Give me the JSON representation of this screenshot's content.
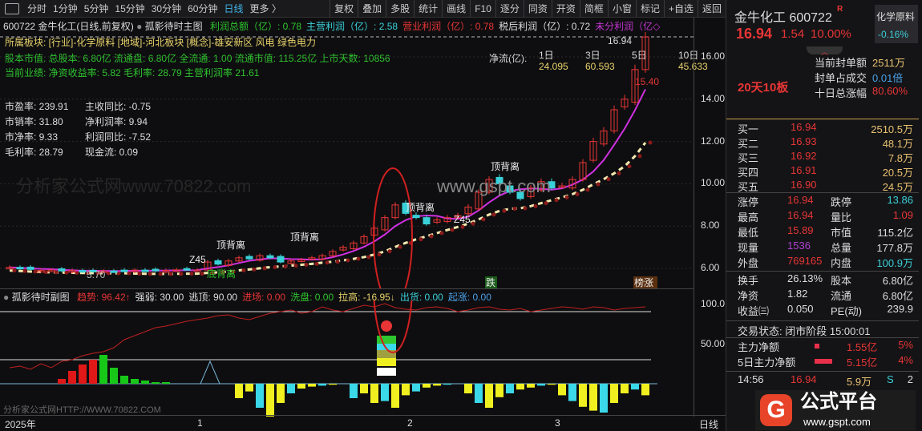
{
  "toolbar": {
    "periods": [
      "分时",
      "1分钟",
      "5分钟",
      "15分钟",
      "30分钟",
      "60分钟",
      "日线",
      "更多 〉"
    ],
    "selected": "日线",
    "buttons": [
      "复权",
      "叠加",
      "多股",
      "统计",
      "画线",
      "F10",
      "逐分",
      "同资",
      "开资",
      "简框",
      "小窗",
      "标记",
      "+自选",
      "返回"
    ]
  },
  "header": {
    "title": "600722 金牛化工(日线,前复权)",
    "indicator": "孤影待时主图",
    "items": [
      {
        "t": "利润总额（亿）: 0.78",
        "c": "#2ec52e"
      },
      {
        "t": "主营利润（亿）: 2.58",
        "c": "#3ad0d8"
      },
      {
        "t": "营业利润（亿）: 0.78",
        "c": "#e83535"
      },
      {
        "t": "税后利润（亿）: 0.72",
        "c": "#dddddd"
      },
      {
        "t": "未分利润（亿◇",
        "c": "#c236d0"
      }
    ]
  },
  "info": {
    "sector": "所属板块: [行业]-化学原料 [地域]-河北板块 [概念]-雄安新区 风电 绿色电力",
    "cap": "股本市值: 总股本: 6.80亿 流通盘: 6.80亿 全流通: 1.00 流通市值: 115.25亿 上市天数: 10856",
    "perf": "当前业绩:  净资收益率: 5.82 毛利率: 28.79 主营利润率 21.61",
    "ratios": [
      "市盈率: 239.91",
      "主收同比: -0.75",
      "市销率: 31.80",
      "净利润率: 9.94",
      "市净率: 9.33",
      "利润同比: -7.52",
      "毛利率: 28.79",
      "现金流: 0.09"
    ]
  },
  "netflow": {
    "label": "净流(亿):",
    "periods": [
      "1日",
      "3日",
      "5日",
      "10日"
    ],
    "values": [
      "24.095",
      "60.593",
      "",
      "45.633"
    ]
  },
  "annotations": {
    "top_div": "顶背离",
    "bottom_div": "底背离",
    "z45": "Z45",
    "low": "5.70",
    "high": "16.94",
    "high2": "15.40",
    "die": "跌",
    "bang": "榜涨",
    "watermark": "分析家公式网www.70822.com",
    "gspt": "www.gspt.com"
  },
  "price_axis": [
    "16.00",
    "14.00",
    "12.00",
    "10.00",
    "8.00",
    "6.00"
  ],
  "sub_axis": [
    "100.0",
    "50.00"
  ],
  "sub": {
    "title": "孤影待时副图",
    "items": [
      {
        "t": "趋势: 96.42↑",
        "c": "#e83535"
      },
      {
        "t": "强弱: 30.00",
        "c": "#dddddd"
      },
      {
        "t": "逃顶: 90.00",
        "c": "#dddddd"
      },
      {
        "t": "进场: 0.00",
        "c": "#e83535"
      },
      {
        "t": "洗盘: 0.00",
        "c": "#2ec52e"
      },
      {
        "t": "拉高: -16.95↓",
        "c": "#e8d36b"
      },
      {
        "t": "出货: 0.00",
        "c": "#3ad0d8"
      },
      {
        "t": "起涨: 0.00",
        "c": "#4aa0e8"
      }
    ],
    "watermark": "分析家公式网HTTP://WWW.70822.COM"
  },
  "date_axis": {
    "year": "2025年",
    "months": [
      "1",
      "2",
      "3"
    ],
    "period": "日线"
  },
  "chart_data": {
    "type": "candlestick",
    "closes": [
      6.05,
      6.0,
      5.95,
      5.9,
      5.92,
      5.88,
      5.9,
      5.85,
      5.9,
      5.88,
      5.86,
      5.9,
      5.92,
      5.9,
      5.88,
      5.9,
      5.93,
      5.95,
      5.92,
      6.3,
      6.2,
      6.35,
      6.5,
      6.45,
      6.6,
      6.5,
      6.3,
      6.35,
      6.4,
      6.5,
      6.6,
      6.8,
      7.0,
      7.2,
      7.5,
      7.9,
      8.4,
      9.0,
      8.6,
      8.4,
      8.1,
      8.3,
      8.4,
      8.5,
      8.9,
      9.6,
      10.2,
      10.0,
      9.6,
      9.3,
      9.8,
      10.1,
      9.8,
      9.9,
      10.2,
      11.0,
      12.0,
      12.5,
      13.5,
      14.0,
      15.4,
      16.94
    ],
    "ylim": [
      5.5,
      17
    ],
    "sub_hist": [
      0,
      0,
      0,
      0,
      0,
      3,
      8,
      12,
      15,
      18,
      10,
      5,
      3,
      2,
      1,
      1,
      0,
      0,
      0,
      0,
      0,
      0,
      -15,
      -8,
      -25,
      -35,
      -20,
      -10,
      -5,
      -3,
      -2,
      -1,
      0,
      -15,
      -10,
      -20,
      -18,
      -25,
      -12,
      -8,
      -4,
      -2,
      -1,
      0,
      -10,
      -20,
      -25,
      -14,
      -10,
      -6,
      -4,
      -2,
      -1,
      -12,
      -18,
      -24,
      -28,
      -30,
      -20,
      -10,
      -6,
      -12
    ],
    "trend": [
      20,
      22,
      18,
      25,
      20,
      28,
      30,
      35,
      38,
      40,
      45,
      55,
      60,
      65,
      70,
      72,
      75,
      78,
      80,
      82,
      85,
      86,
      82,
      80,
      84,
      88,
      90,
      92,
      88,
      90,
      96,
      92,
      90,
      94,
      98,
      96,
      100,
      95,
      93,
      92,
      95,
      96,
      94,
      90,
      92,
      95,
      96,
      93,
      92,
      94,
      90,
      92,
      94,
      96,
      95,
      93,
      96,
      95,
      92,
      94,
      95,
      96
    ],
    "sub_ylim": [
      0,
      100
    ]
  },
  "quote": {
    "name": "金牛化工 600722",
    "r": "R",
    "price": "16.94",
    "change": "1.54",
    "pct": "10.00%",
    "sector": "化学原料",
    "sector_pct": "-0.16%",
    "streak": "20天10板",
    "seal": [
      {
        "k": "当前封单额",
        "v": "2511万",
        "c": "#e8c070"
      },
      {
        "k": "封单占成交",
        "v": "0.01倍",
        "c": "#4aa0e8"
      },
      {
        "k": "十日总涨幅",
        "v": "80.60%",
        "c": "#e83535"
      }
    ],
    "bids": [
      [
        "买一",
        "16.94",
        "2510.5万"
      ],
      [
        "买二",
        "16.93",
        "48.1万"
      ],
      [
        "买三",
        "16.92",
        "7.8万"
      ],
      [
        "买四",
        "16.91",
        "20.5万"
      ],
      [
        "买五",
        "16.90",
        "24.5万"
      ]
    ],
    "stats": [
      [
        "涨停",
        "16.94",
        "跌停",
        "13.86"
      ],
      [
        "最高",
        "16.94",
        "量比",
        "1.09"
      ],
      [
        "最低",
        "15.89",
        "市值",
        "115.2亿"
      ],
      [
        "现量",
        "1536",
        "总量",
        "177.8万"
      ],
      [
        "外盘",
        "769165",
        "内盘",
        "100.9万"
      ]
    ],
    "stats2": [
      [
        "换手",
        "26.13%",
        "股本",
        "6.80亿"
      ],
      [
        "净资",
        "1.82",
        "流通",
        "6.80亿"
      ],
      [
        "收益㈢",
        "0.050",
        "PE(动)",
        "239.9"
      ]
    ],
    "status": "交易状态: 闭市阶段 15:00:01",
    "flow": [
      [
        "主力净额",
        "1.55亿",
        "5%"
      ],
      [
        "5日主力净额",
        "5.15亿",
        "4%"
      ]
    ],
    "tick": [
      "14:56",
      "16.94",
      "5.9万",
      "S",
      "2"
    ]
  },
  "logo": {
    "text": "公式平台",
    "url": "www.gspt.com"
  }
}
